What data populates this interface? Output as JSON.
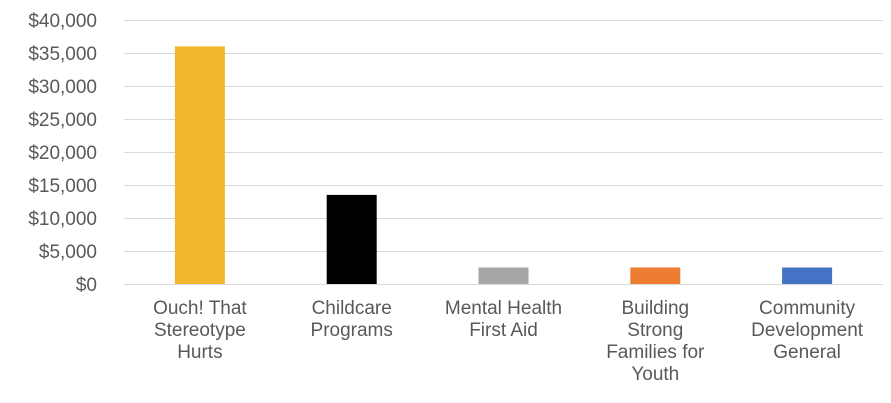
{
  "chart_data": {
    "type": "bar",
    "categories": [
      [
        "Ouch! That",
        "Stereotype",
        "Hurts"
      ],
      [
        "Childcare",
        "Programs"
      ],
      [
        "Mental Health",
        "First Aid"
      ],
      [
        "Building",
        "Strong",
        "Families for",
        "Youth"
      ],
      [
        "Community",
        "Development",
        "General"
      ]
    ],
    "values": [
      36000,
      13500,
      2500,
      2500,
      2500
    ],
    "colors": [
      "#F0B72F",
      "#000000",
      "#A9A6A6",
      "#ED7D31",
      "#4472C4"
    ],
    "ylim": [
      0,
      40000
    ],
    "yticks": [
      0,
      5000,
      10000,
      15000,
      20000,
      25000,
      30000,
      35000,
      40000
    ],
    "ytick_labels": [
      "$0",
      "$5,000",
      "$10,000",
      "$15,000",
      "$20,000",
      "$25,000",
      "$30,000",
      "$35,000",
      "$40,000"
    ],
    "grid": true,
    "title": "",
    "xlabel": "",
    "ylabel": ""
  }
}
